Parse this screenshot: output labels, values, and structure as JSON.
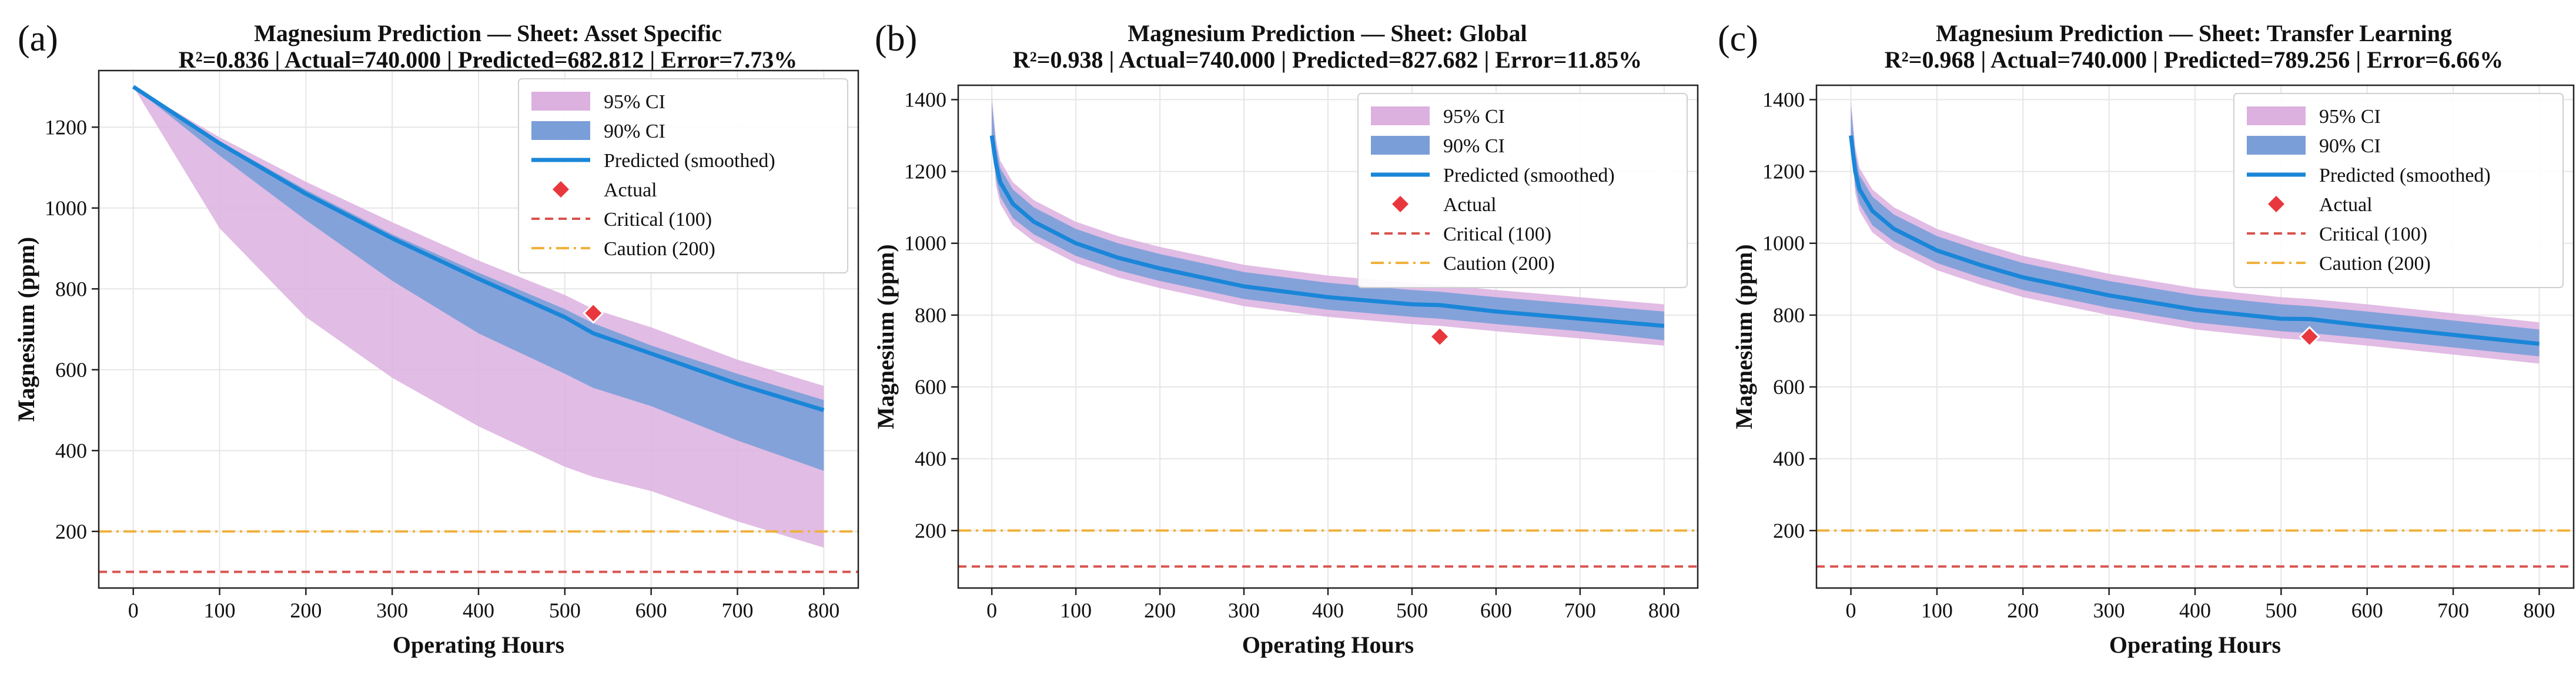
{
  "figure": {
    "legend_labels": {
      "ci95": "95% CI",
      "ci90": "90% CI",
      "predicted": "Predicted (smoothed)",
      "actual": "Actual",
      "critical": "Critical (100)",
      "caution": "Caution (200)"
    },
    "colors": {
      "ci95": "#dcb0df",
      "ci90": "#7a9ed8",
      "predicted": "#1a86d8",
      "actual": "#e8383d",
      "critical": "#d9534f",
      "caution": "#f0b13c",
      "grid": "#e6e6e6"
    }
  },
  "chart_data": [
    {
      "panel_label": "(a)",
      "type": "line",
      "title": "Magnesium Prediction — Sheet: Asset Specific",
      "subtitle": "R²=0.836 | Actual=740.000 | Predicted=682.812 | Error=7.73%",
      "xlabel": "Operating Hours",
      "ylabel": "Magnesium (ppm)",
      "xlim": [
        -40,
        840
      ],
      "ylim": [
        60,
        1340
      ],
      "xticks": [
        0,
        100,
        200,
        300,
        400,
        500,
        600,
        700,
        800
      ],
      "yticks": [
        200,
        400,
        600,
        800,
        1000,
        1200
      ],
      "grid": true,
      "legend_position": "top-right",
      "x": [
        0,
        100,
        200,
        300,
        400,
        500,
        533,
        600,
        700,
        800
      ],
      "predicted": [
        1300,
        1160,
        1035,
        925,
        825,
        730,
        690,
        640,
        565,
        500
      ],
      "ci90_lower": [
        1300,
        1130,
        970,
        820,
        690,
        590,
        555,
        510,
        425,
        350
      ],
      "ci90_upper": [
        1300,
        1165,
        1045,
        935,
        840,
        750,
        715,
        660,
        590,
        525
      ],
      "ci95_lower": [
        1300,
        950,
        730,
        580,
        460,
        360,
        335,
        300,
        225,
        160
      ],
      "ci95_upper": [
        1300,
        1175,
        1065,
        965,
        870,
        785,
        750,
        705,
        625,
        560
      ],
      "actual": {
        "x": 533,
        "y": 740
      },
      "critical": 100,
      "caution": 200
    },
    {
      "panel_label": "(b)",
      "type": "line",
      "title": "Magnesium Prediction — Sheet: Global",
      "subtitle": "R²=0.938 | Actual=740.000 | Predicted=827.682 | Error=11.85%",
      "xlabel": "Operating Hours",
      "ylabel": "Magnesium (ppm)",
      "xlim": [
        -40,
        840
      ],
      "ylim": [
        40,
        1440
      ],
      "xticks": [
        0,
        100,
        200,
        300,
        400,
        500,
        600,
        700,
        800
      ],
      "yticks": [
        200,
        400,
        600,
        800,
        1000,
        1200,
        1400
      ],
      "grid": true,
      "legend_position": "top-right",
      "x": [
        0,
        5,
        10,
        25,
        50,
        100,
        150,
        200,
        300,
        400,
        500,
        533,
        600,
        700,
        800
      ],
      "predicted": [
        1300,
        1220,
        1170,
        1110,
        1060,
        1000,
        960,
        930,
        880,
        850,
        830,
        828,
        810,
        790,
        770
      ],
      "ci90_lower": [
        1300,
        1180,
        1130,
        1070,
        1025,
        965,
        925,
        895,
        845,
        815,
        795,
        790,
        775,
        755,
        730
      ],
      "ci90_upper": [
        1390,
        1270,
        1210,
        1150,
        1100,
        1040,
        1000,
        970,
        920,
        890,
        870,
        865,
        850,
        830,
        810
      ],
      "ci95_lower": [
        1300,
        1160,
        1110,
        1050,
        1005,
        945,
        905,
        875,
        825,
        795,
        775,
        770,
        755,
        735,
        715
      ],
      "ci95_upper": [
        1410,
        1290,
        1230,
        1170,
        1120,
        1060,
        1020,
        990,
        940,
        910,
        890,
        885,
        870,
        850,
        830
      ],
      "actual": {
        "x": 533,
        "y": 740
      },
      "critical": 100,
      "caution": 200
    },
    {
      "panel_label": "(c)",
      "type": "line",
      "title": "Magnesium Prediction — Sheet: Transfer Learning",
      "subtitle": "R²=0.968 | Actual=740.000 | Predicted=789.256 | Error=6.66%",
      "xlabel": "Operating Hours",
      "ylabel": "Magnesium (ppm)",
      "xlim": [
        -40,
        840
      ],
      "ylim": [
        40,
        1440
      ],
      "xticks": [
        0,
        100,
        200,
        300,
        400,
        500,
        600,
        700,
        800
      ],
      "yticks": [
        200,
        400,
        600,
        800,
        1000,
        1200,
        1400
      ],
      "grid": true,
      "legend_position": "top-right",
      "x": [
        0,
        5,
        10,
        25,
        50,
        100,
        150,
        200,
        300,
        400,
        500,
        533,
        600,
        700,
        800
      ],
      "predicted": [
        1300,
        1200,
        1150,
        1090,
        1040,
        980,
        940,
        905,
        855,
        815,
        790,
        789,
        770,
        745,
        720
      ],
      "ci90_lower": [
        1300,
        1160,
        1110,
        1050,
        1005,
        945,
        905,
        870,
        820,
        780,
        755,
        750,
        735,
        710,
        685
      ],
      "ci90_upper": [
        1380,
        1250,
        1190,
        1130,
        1080,
        1020,
        980,
        945,
        895,
        855,
        830,
        825,
        810,
        785,
        760
      ],
      "ci95_lower": [
        1300,
        1140,
        1090,
        1030,
        985,
        925,
        885,
        850,
        800,
        760,
        735,
        730,
        715,
        690,
        665
      ],
      "ci95_upper": [
        1400,
        1270,
        1210,
        1150,
        1100,
        1040,
        1000,
        965,
        915,
        875,
        850,
        845,
        830,
        805,
        780
      ],
      "actual": {
        "x": 533,
        "y": 740
      },
      "critical": 100,
      "caution": 200
    }
  ]
}
